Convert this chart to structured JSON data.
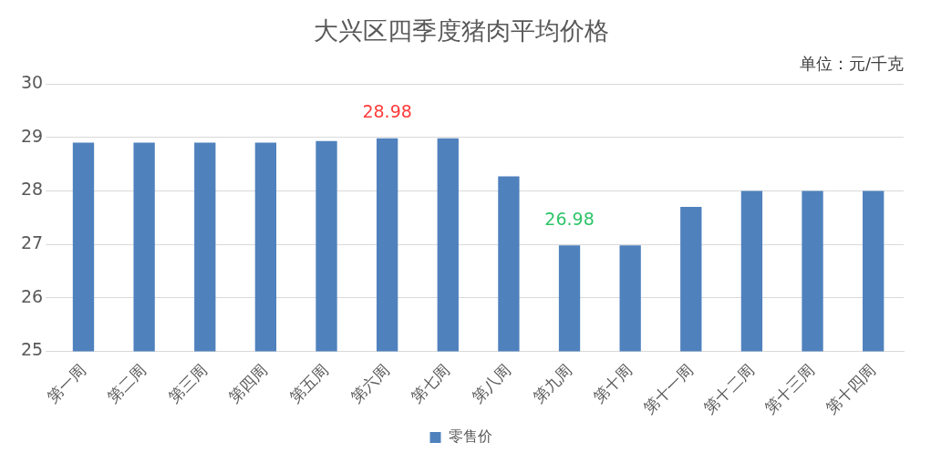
{
  "chart_data": {
    "type": "bar",
    "title": "大兴区四季度猪肉平均价格",
    "subtitle": "单位：元/千克",
    "categories": [
      "第一周",
      "第二周",
      "第三周",
      "第四周",
      "第五周",
      "第六周",
      "第七周",
      "第八周",
      "第九周",
      "第十周",
      "第十一周",
      "第十二周",
      "第十三周",
      "第十四周"
    ],
    "series": [
      {
        "name": "零售价",
        "color": "#4f81bd",
        "values": [
          28.9,
          28.9,
          28.9,
          28.9,
          28.93,
          28.98,
          28.98,
          28.27,
          26.98,
          26.98,
          27.7,
          28.0,
          28.0,
          28.0
        ]
      }
    ],
    "ylim": [
      25,
      30
    ],
    "yticks": [
      25,
      26,
      27,
      28,
      29,
      30
    ],
    "grid": "y",
    "legend": "bottom",
    "annotations": [
      {
        "text": "28.98",
        "x": "第六周",
        "y": 28.98
      },
      {
        "text": "26.98",
        "x": "第九周",
        "y": 26.98
      }
    ]
  }
}
